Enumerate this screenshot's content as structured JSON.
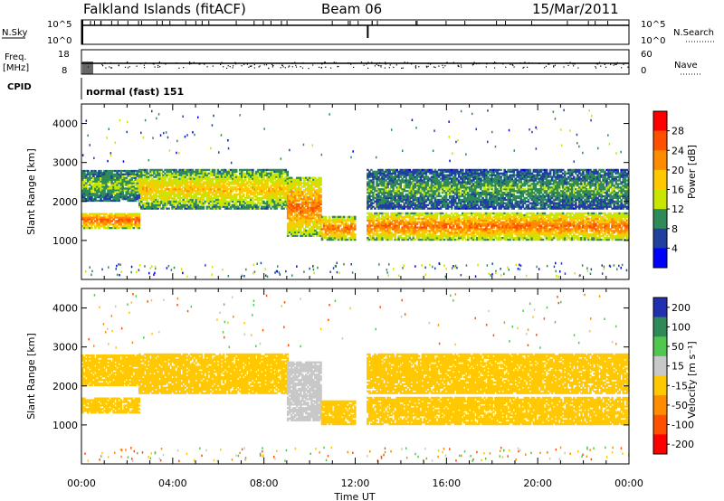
{
  "header": {
    "station": "Falkland Islands (fitACF)",
    "beam": "Beam 06",
    "date": "15/Mar/2011"
  },
  "strips": {
    "nsky_label": "N.Sky",
    "nsky_ticks": [
      "10^5",
      "10^0"
    ],
    "nsearch_label": "N.Search",
    "nsearch_ticks": [
      "10^5",
      "10^0"
    ],
    "freq_label": "Freq.",
    "freq_unit": "[MHz]",
    "freq_ticks": [
      "18",
      "8"
    ],
    "nave_label": "Nave",
    "nave_ticks": [
      "60",
      "0"
    ],
    "cpid_label": "CPID",
    "cpid_text": "normal (fast) 151"
  },
  "power_colorbar": {
    "label": "Power [dB]",
    "ticks": [
      "28",
      "24",
      "20",
      "16",
      "12",
      "8",
      "4"
    ],
    "colors": [
      "#ff0000",
      "#ff5000",
      "#ff8c00",
      "#ffc800",
      "#c8e600",
      "#2e8b57",
      "#2040a0",
      "#0000ff"
    ]
  },
  "velocity_colorbar": {
    "label": "Velocity [m s⁻¹]",
    "ticks": [
      "200",
      "100",
      "50",
      "15",
      "-15",
      "-50",
      "-100",
      "-200"
    ],
    "colors": [
      "#2030b0",
      "#2e8b57",
      "#50c850",
      "#c8c8c8",
      "#ffc800",
      "#ff8c00",
      "#ff5000",
      "#ff0000"
    ]
  },
  "axes": {
    "ylabel": "Slant Range [km]",
    "xlabel": "Time UT",
    "xticks": [
      "00:00",
      "04:00",
      "08:00",
      "12:00",
      "16:00",
      "20:00",
      "00:00"
    ]
  },
  "chart_data": {
    "type": "heatmap",
    "panels": [
      "power",
      "velocity"
    ],
    "x_range_hours": [
      0,
      24
    ],
    "ylim": [
      0,
      4500
    ],
    "yticks": [
      1000,
      2000,
      3000,
      4000
    ],
    "data_gap_hours": [
      12.0,
      12.5
    ],
    "power_scale": [
      0,
      30
    ],
    "velocity_scale": [
      -250,
      250
    ],
    "bands": [
      {
        "time_hours": [
          0.0,
          2.5
        ],
        "range_km": [
          1300,
          1700
        ],
        "power_db": 26,
        "velocity": -5
      },
      {
        "time_hours": [
          0.0,
          2.5
        ],
        "range_km": [
          2000,
          2800
        ],
        "power_db": 12,
        "velocity": 0
      },
      {
        "time_hours": [
          2.5,
          9.0
        ],
        "range_km": [
          1800,
          2800
        ],
        "power_db": 18,
        "velocity": 0
      },
      {
        "time_hours": [
          9.0,
          10.5
        ],
        "range_km": [
          1100,
          2600
        ],
        "power_db": 24,
        "velocity": 40
      },
      {
        "time_hours": [
          10.5,
          12.0
        ],
        "range_km": [
          1000,
          1600
        ],
        "power_db": 24,
        "velocity": 0
      },
      {
        "time_hours": [
          12.5,
          24.0
        ],
        "range_km": [
          1000,
          1700
        ],
        "power_db": 24,
        "velocity": 0
      },
      {
        "time_hours": [
          12.5,
          24.0
        ],
        "range_km": [
          1800,
          2800
        ],
        "power_db": 10,
        "velocity": 0
      }
    ]
  }
}
